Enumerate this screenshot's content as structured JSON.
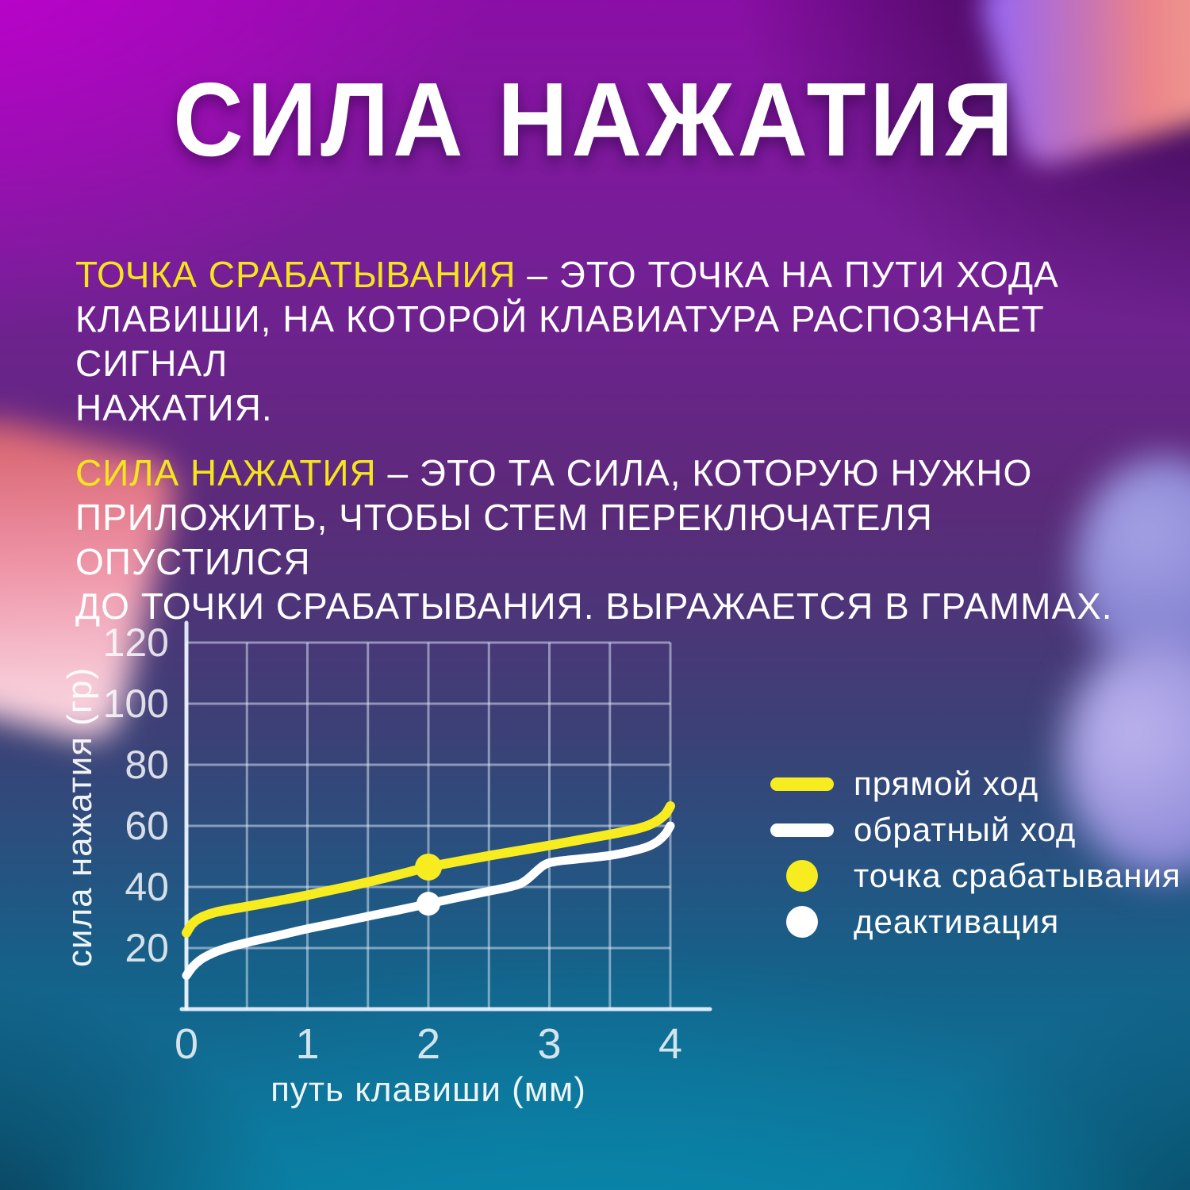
{
  "title": "СИЛА НАЖАТИЯ",
  "paragraphs": [
    {
      "accent": "ТОЧКА СРАБАТЫВАНИЯ",
      "rest": " – ЭТО ТОЧКА НА ПУТИ ХОДА\nКЛАВИШИ, НА КОТОРОЙ КЛАВИАТУРА РАСПОЗНАЕТ СИГНАЛ\nНАЖАТИЯ."
    },
    {
      "accent": "СИЛА НАЖАТИЯ",
      "rest": " – ЭТО ТА СИЛА, КОТОРУЮ НУЖНО\nПРИЛОЖИТЬ, ЧТОБЫ СТЕМ ПЕРЕКЛЮЧАТЕЛЯ ОПУСТИЛСЯ\nДО ТОЧКИ СРАБАТЫВАНИЯ. ВЫРАЖАЕТСЯ В ГРАММАХ."
    }
  ],
  "colors": {
    "accent_yellow": "#f5e51d",
    "curve_yellow": "#f7ec1f",
    "curve_white": "#ffffff",
    "grid_line": "rgba(226,235,248,0.5)",
    "axis_line": "rgba(240,246,255,0.9)",
    "tick_text": "rgba(255,255,255,0.82)"
  },
  "chart_data": {
    "type": "line",
    "title": "",
    "xlabel": "путь клавиши (мм)",
    "ylabel": "сила нажатия (гр)",
    "xlim": [
      0,
      4
    ],
    "ylim": [
      0,
      130
    ],
    "x_ticks": [
      0,
      1,
      2,
      3,
      4
    ],
    "y_ticks": [
      20,
      40,
      60,
      80,
      100,
      120
    ],
    "grid": true,
    "grid_step_x": 0.5,
    "grid_step_y": 20,
    "legend_position": "right",
    "series": [
      {
        "name": "прямой ход",
        "color": "#f7ec1f",
        "points": [
          [
            0,
            25
          ],
          [
            0.05,
            28
          ],
          [
            0.12,
            30
          ],
          [
            0.25,
            31.8
          ],
          [
            0.5,
            33.6
          ],
          [
            0.75,
            35.4
          ],
          [
            1,
            37.3
          ],
          [
            1.25,
            39.4
          ],
          [
            1.5,
            41.6
          ],
          [
            1.75,
            44
          ],
          [
            2,
            46.5
          ],
          [
            2.25,
            48.4
          ],
          [
            2.5,
            50.2
          ],
          [
            2.75,
            51.9
          ],
          [
            3,
            53.6
          ],
          [
            3.25,
            55.4
          ],
          [
            3.5,
            57.2
          ],
          [
            3.7,
            58.8
          ],
          [
            3.82,
            60.2
          ],
          [
            3.9,
            61.9
          ],
          [
            3.96,
            63.9
          ],
          [
            4,
            66.5
          ]
        ]
      },
      {
        "name": "обратный ход",
        "color": "#ffffff",
        "points": [
          [
            0,
            11
          ],
          [
            0.06,
            14.2
          ],
          [
            0.15,
            17
          ],
          [
            0.3,
            19.6
          ],
          [
            0.5,
            21.8
          ],
          [
            0.75,
            24
          ],
          [
            1,
            26.3
          ],
          [
            1.25,
            28.3
          ],
          [
            1.5,
            30.4
          ],
          [
            1.75,
            32.4
          ],
          [
            2,
            34.5
          ],
          [
            2.25,
            36.6
          ],
          [
            2.5,
            38.6
          ],
          [
            2.7,
            40.3
          ],
          [
            2.8,
            42
          ],
          [
            2.95,
            47
          ],
          [
            3.05,
            48.3
          ],
          [
            3.2,
            49
          ],
          [
            3.5,
            50.3
          ],
          [
            3.7,
            51.9
          ],
          [
            3.82,
            53.3
          ],
          [
            3.9,
            55.1
          ],
          [
            3.96,
            57.4
          ],
          [
            4,
            60
          ]
        ]
      }
    ],
    "markers": [
      {
        "name": "точка срабатывания",
        "color": "#f7ec1f",
        "x": 2,
        "y": 46.5
      },
      {
        "name": "деактивация",
        "color": "#ffffff",
        "x": 2,
        "y": 34.5
      }
    ],
    "legend": [
      {
        "label": "прямой ход",
        "swatch": "line",
        "color": "#f7ec1f"
      },
      {
        "label": "обратный ход",
        "swatch": "line",
        "color": "#ffffff"
      },
      {
        "label": "точка срабатывания",
        "swatch": "dot",
        "color": "#f7ec1f"
      },
      {
        "label": "деактивация",
        "swatch": "dot",
        "color": "#ffffff"
      }
    ]
  }
}
